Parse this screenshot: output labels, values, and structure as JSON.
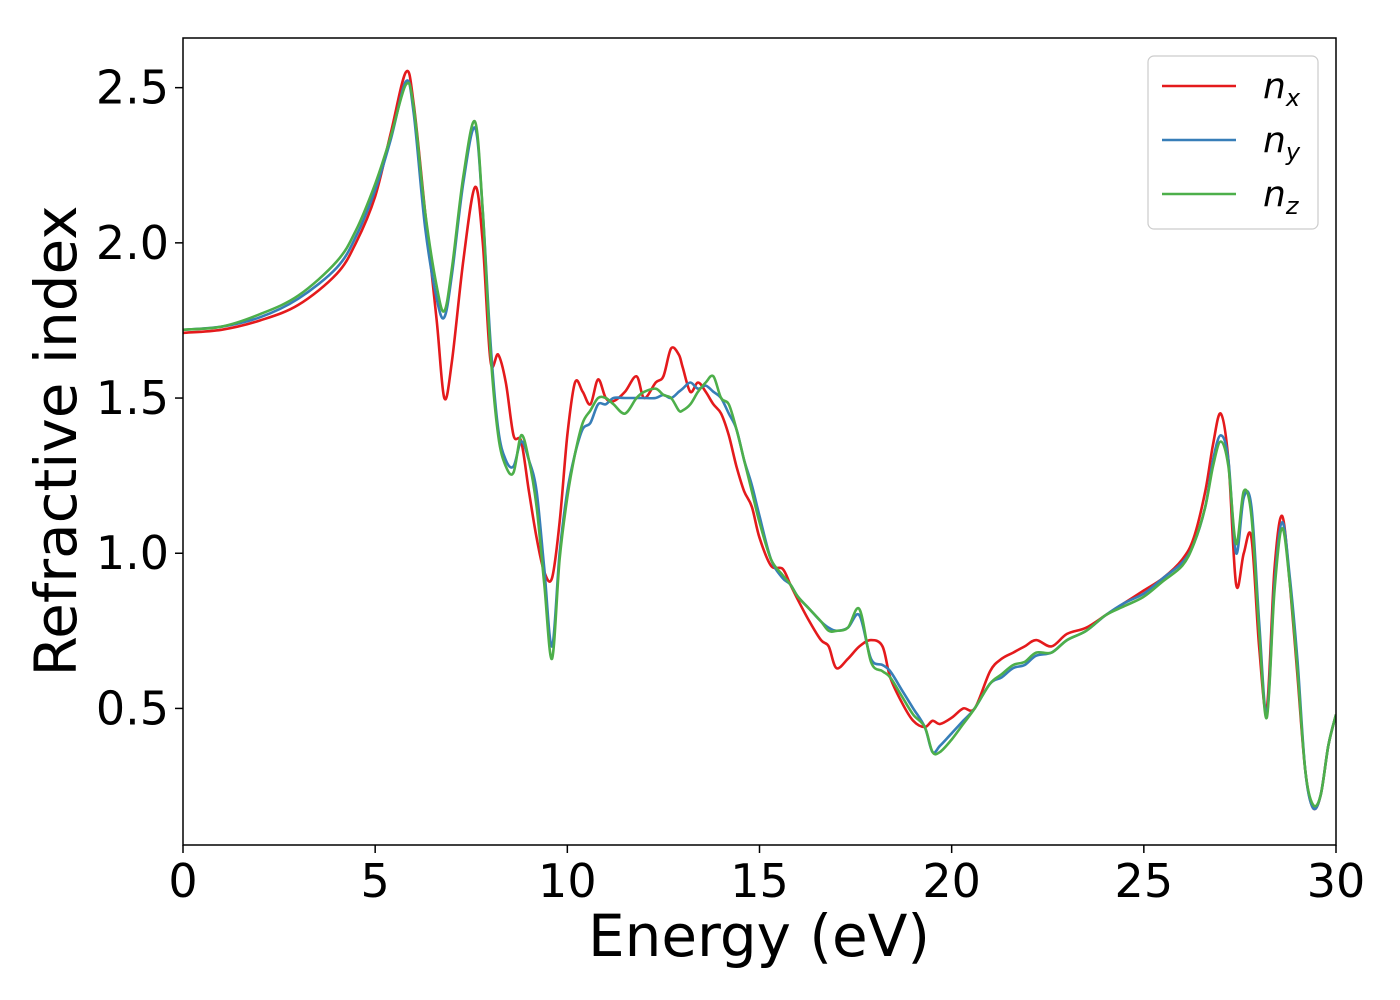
{
  "chart_data": {
    "type": "line",
    "title": "",
    "xlabel": "Energy (eV)",
    "ylabel": "Refractive index",
    "xlim": [
      0,
      30
    ],
    "ylim": [
      0.06,
      2.66
    ],
    "xticks": [
      0,
      5,
      10,
      15,
      20,
      25,
      30
    ],
    "xtick_labels": [
      "0",
      "5",
      "10",
      "15",
      "20",
      "25",
      "30"
    ],
    "yticks": [
      0.5,
      1.0,
      1.5,
      2.0,
      2.5
    ],
    "ytick_labels": [
      "0.5",
      "1.0",
      "1.5",
      "2.0",
      "2.5"
    ],
    "grid": false,
    "legend_position": "top-right",
    "series": [
      {
        "name": "n_x",
        "legend_main": "n",
        "legend_sub": "x",
        "color": "#e41a1c",
        "x": [
          0,
          1,
          2,
          3,
          4,
          4.5,
          5,
          5.4,
          5.8,
          6.0,
          6.3,
          6.6,
          6.8,
          7.0,
          7.3,
          7.6,
          7.8,
          8.0,
          8.2,
          8.4,
          8.6,
          8.8,
          9.0,
          9.2,
          9.4,
          9.6,
          9.8,
          10.0,
          10.2,
          10.4,
          10.6,
          10.8,
          11.0,
          11.2,
          11.5,
          11.8,
          12.0,
          12.3,
          12.5,
          12.7,
          12.9,
          13.0,
          13.2,
          13.4,
          13.6,
          13.8,
          14.0,
          14.2,
          14.4,
          14.6,
          14.8,
          15.0,
          15.3,
          15.6,
          15.8,
          16.0,
          16.3,
          16.6,
          16.8,
          17.0,
          17.3,
          17.6,
          17.9,
          18.2,
          18.4,
          18.7,
          19.0,
          19.3,
          19.5,
          19.7,
          20.0,
          20.3,
          20.6,
          21.0,
          21.3,
          21.6,
          21.9,
          22.2,
          22.6,
          23.0,
          23.5,
          24.0,
          24.5,
          25.0,
          25.5,
          26.0,
          26.3,
          26.6,
          26.8,
          27.0,
          27.2,
          27.4,
          27.6,
          27.8,
          28.0,
          28.2,
          28.4,
          28.6,
          28.8,
          29.0,
          29.2,
          29.4,
          29.6,
          29.8,
          30.0
        ],
        "y": [
          1.71,
          1.72,
          1.75,
          1.8,
          1.9,
          2.0,
          2.15,
          2.35,
          2.55,
          2.45,
          2.1,
          1.75,
          1.5,
          1.62,
          1.95,
          2.18,
          2.0,
          1.62,
          1.64,
          1.55,
          1.38,
          1.36,
          1.2,
          1.05,
          0.94,
          0.92,
          1.1,
          1.38,
          1.55,
          1.52,
          1.48,
          1.56,
          1.5,
          1.49,
          1.52,
          1.57,
          1.5,
          1.55,
          1.57,
          1.66,
          1.64,
          1.6,
          1.52,
          1.55,
          1.52,
          1.48,
          1.45,
          1.38,
          1.28,
          1.2,
          1.15,
          1.05,
          0.96,
          0.95,
          0.9,
          0.85,
          0.78,
          0.72,
          0.7,
          0.63,
          0.66,
          0.7,
          0.72,
          0.7,
          0.6,
          0.52,
          0.46,
          0.44,
          0.46,
          0.45,
          0.47,
          0.5,
          0.5,
          0.62,
          0.66,
          0.68,
          0.7,
          0.72,
          0.7,
          0.74,
          0.76,
          0.8,
          0.84,
          0.88,
          0.92,
          0.98,
          1.05,
          1.2,
          1.35,
          1.45,
          1.3,
          0.9,
          1.0,
          1.05,
          0.7,
          0.5,
          0.95,
          1.12,
          0.9,
          0.6,
          0.3,
          0.18,
          0.22,
          0.38,
          0.48
        ]
      },
      {
        "name": "n_y",
        "legend_main": "n",
        "legend_sub": "y",
        "color": "#377eb8",
        "x": [
          0,
          1,
          2,
          3,
          4,
          4.5,
          5,
          5.4,
          5.8,
          6.0,
          6.3,
          6.6,
          6.8,
          7.0,
          7.3,
          7.6,
          7.8,
          8.0,
          8.2,
          8.4,
          8.6,
          8.8,
          9.0,
          9.2,
          9.4,
          9.6,
          9.8,
          10.0,
          10.2,
          10.4,
          10.6,
          10.8,
          11.0,
          11.2,
          11.5,
          11.8,
          12.0,
          12.3,
          12.5,
          12.7,
          12.9,
          13.0,
          13.2,
          13.4,
          13.6,
          13.8,
          14.0,
          14.2,
          14.4,
          14.6,
          14.8,
          15.0,
          15.3,
          15.6,
          15.8,
          16.0,
          16.3,
          16.6,
          16.8,
          17.0,
          17.3,
          17.6,
          17.9,
          18.2,
          18.4,
          18.7,
          19.0,
          19.3,
          19.5,
          19.7,
          20.0,
          20.3,
          20.6,
          21.0,
          21.3,
          21.6,
          21.9,
          22.2,
          22.6,
          23.0,
          23.5,
          24.0,
          24.5,
          25.0,
          25.5,
          26.0,
          26.3,
          26.6,
          26.8,
          27.0,
          27.2,
          27.4,
          27.6,
          27.8,
          28.0,
          28.2,
          28.4,
          28.6,
          28.8,
          29.0,
          29.2,
          29.4,
          29.6,
          29.8,
          30.0
        ],
        "y": [
          1.72,
          1.73,
          1.76,
          1.82,
          1.92,
          2.02,
          2.17,
          2.33,
          2.52,
          2.42,
          2.05,
          1.82,
          1.76,
          1.9,
          2.2,
          2.37,
          2.1,
          1.68,
          1.4,
          1.3,
          1.28,
          1.36,
          1.3,
          1.2,
          0.95,
          0.7,
          1.0,
          1.2,
          1.32,
          1.4,
          1.42,
          1.48,
          1.48,
          1.5,
          1.5,
          1.5,
          1.5,
          1.5,
          1.51,
          1.5,
          1.52,
          1.53,
          1.55,
          1.53,
          1.54,
          1.52,
          1.5,
          1.45,
          1.4,
          1.3,
          1.22,
          1.12,
          0.98,
          0.92,
          0.9,
          0.86,
          0.82,
          0.78,
          0.76,
          0.75,
          0.76,
          0.8,
          0.66,
          0.64,
          0.62,
          0.56,
          0.5,
          0.44,
          0.36,
          0.38,
          0.42,
          0.46,
          0.5,
          0.58,
          0.6,
          0.63,
          0.64,
          0.67,
          0.68,
          0.72,
          0.75,
          0.8,
          0.84,
          0.87,
          0.92,
          0.97,
          1.03,
          1.15,
          1.3,
          1.38,
          1.3,
          1.0,
          1.18,
          1.15,
          0.78,
          0.48,
          0.9,
          1.1,
          0.92,
          0.65,
          0.3,
          0.18,
          0.22,
          0.38,
          0.48
        ]
      },
      {
        "name": "n_z",
        "legend_main": "n",
        "legend_sub": "z",
        "color": "#4daf4a",
        "x": [
          0,
          1,
          2,
          3,
          4,
          4.5,
          5,
          5.4,
          5.8,
          6.0,
          6.3,
          6.6,
          6.8,
          7.0,
          7.3,
          7.6,
          7.8,
          8.0,
          8.2,
          8.4,
          8.6,
          8.8,
          9.0,
          9.2,
          9.4,
          9.6,
          9.8,
          10.0,
          10.2,
          10.4,
          10.6,
          10.8,
          11.0,
          11.2,
          11.5,
          11.8,
          12.0,
          12.3,
          12.5,
          12.7,
          12.9,
          13.0,
          13.2,
          13.4,
          13.6,
          13.8,
          14.0,
          14.2,
          14.4,
          14.6,
          14.8,
          15.0,
          15.3,
          15.6,
          15.8,
          16.0,
          16.3,
          16.6,
          16.8,
          17.0,
          17.3,
          17.6,
          17.9,
          18.2,
          18.4,
          18.7,
          19.0,
          19.3,
          19.5,
          19.7,
          20.0,
          20.3,
          20.6,
          21.0,
          21.3,
          21.6,
          21.9,
          22.2,
          22.6,
          23.0,
          23.5,
          24.0,
          24.5,
          25.0,
          25.5,
          26.0,
          26.3,
          26.6,
          26.8,
          27.0,
          27.2,
          27.4,
          27.6,
          27.8,
          28.0,
          28.2,
          28.4,
          28.6,
          28.8,
          29.0,
          29.2,
          29.4,
          29.6,
          29.8,
          30.0
        ],
        "y": [
          1.72,
          1.73,
          1.77,
          1.83,
          1.94,
          2.04,
          2.19,
          2.34,
          2.51,
          2.44,
          2.1,
          1.86,
          1.78,
          1.92,
          2.22,
          2.39,
          2.1,
          1.65,
          1.38,
          1.28,
          1.26,
          1.38,
          1.3,
          1.15,
          0.9,
          0.66,
          0.98,
          1.18,
          1.32,
          1.42,
          1.46,
          1.5,
          1.5,
          1.48,
          1.45,
          1.5,
          1.52,
          1.53,
          1.51,
          1.5,
          1.46,
          1.46,
          1.48,
          1.52,
          1.55,
          1.57,
          1.5,
          1.48,
          1.4,
          1.3,
          1.2,
          1.1,
          0.98,
          0.93,
          0.9,
          0.86,
          0.82,
          0.78,
          0.75,
          0.75,
          0.76,
          0.82,
          0.65,
          0.62,
          0.6,
          0.54,
          0.48,
          0.44,
          0.36,
          0.36,
          0.4,
          0.45,
          0.5,
          0.58,
          0.61,
          0.64,
          0.65,
          0.68,
          0.68,
          0.72,
          0.75,
          0.8,
          0.83,
          0.86,
          0.91,
          0.96,
          1.03,
          1.15,
          1.28,
          1.36,
          1.28,
          1.03,
          1.2,
          1.12,
          0.75,
          0.47,
          0.88,
          1.08,
          0.9,
          0.62,
          0.3,
          0.19,
          0.22,
          0.38,
          0.48
        ]
      }
    ]
  }
}
